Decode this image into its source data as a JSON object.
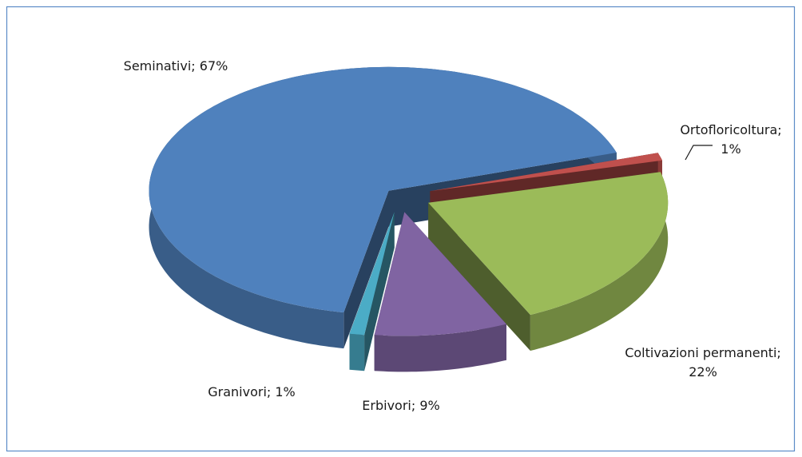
{
  "chart_data": {
    "type": "pie3d",
    "values": [
      67,
      1,
      22,
      9,
      1
    ],
    "value_labels": [
      "Seminativi; 67%",
      "Ortofloricoltura; 1%",
      "Coltivazioni permanenti; 22%",
      "Erbivori; 9%",
      "Granivori; 1%"
    ],
    "colors": [
      "#4f81bd",
      "#c0504d",
      "#9bbb59",
      "#8064a2",
      "#4bacc6"
    ]
  }
}
